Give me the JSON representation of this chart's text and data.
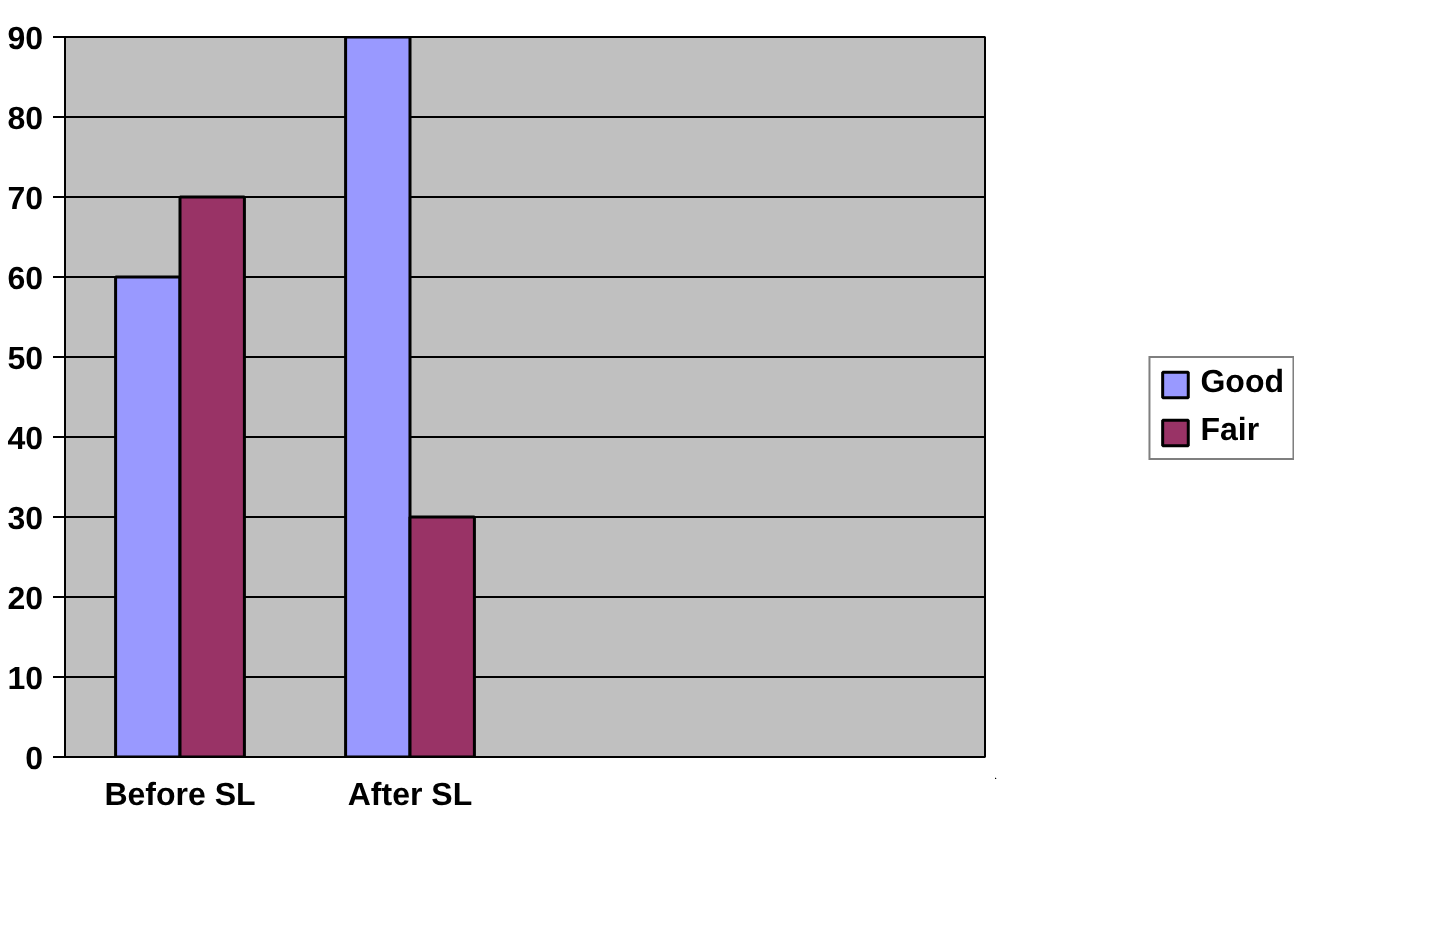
{
  "chart_data": {
    "type": "bar",
    "categories": [
      "Before SL",
      "After SL",
      null,
      null
    ],
    "series": [
      {
        "name": "Good",
        "color": "#9999ff",
        "values": [
          60,
          90,
          null,
          null
        ]
      },
      {
        "name": "Fair",
        "color": "#993366",
        "values": [
          70,
          30,
          null,
          null
        ]
      }
    ],
    "ylim": [
      0,
      90
    ],
    "yticks": [
      0,
      10,
      20,
      30,
      40,
      50,
      60,
      70,
      80,
      90
    ],
    "grid": "y",
    "legend": "right"
  }
}
